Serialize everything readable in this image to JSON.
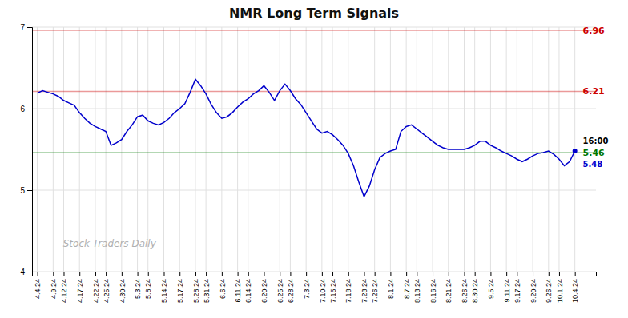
{
  "chart_data": {
    "type": "line",
    "title": "NMR Long Term Signals",
    "categories": [
      "4.4.24",
      null,
      null,
      "4.9.24",
      null,
      "4.12.24",
      null,
      null,
      "4.17.24",
      null,
      null,
      "4.22.24",
      null,
      "4.25.24",
      null,
      null,
      "4.30.24",
      null,
      null,
      "5.3.24",
      null,
      "5.8.24",
      null,
      null,
      "5.14.24",
      null,
      null,
      "5.17.24",
      null,
      null,
      "5.28.24",
      null,
      "5.31.24",
      null,
      null,
      "6.6.24",
      null,
      null,
      "6.11.24",
      null,
      "6.14.24",
      null,
      null,
      "6.20.24",
      null,
      null,
      "6.25.24",
      null,
      "6.28.24",
      null,
      null,
      "7.3.24",
      null,
      null,
      "7.10.24",
      null,
      "7.15.24",
      null,
      null,
      "7.18.24",
      null,
      null,
      "7.23.24",
      null,
      "7.26.24",
      null,
      null,
      "8.1.24",
      null,
      null,
      "8.7.24",
      null,
      "8.13.24",
      null,
      null,
      "8.16.24",
      null,
      null,
      "8.21.24",
      null,
      null,
      "8.26.24",
      null,
      "8.30.24",
      null,
      null,
      "9.5.24",
      null,
      null,
      "9.11.24",
      null,
      "9.17.24",
      null,
      null,
      "9.20.24",
      null,
      null,
      "9.26.24",
      null,
      "10.1.24",
      null,
      null,
      "10.4.24"
    ],
    "values": [
      6.19,
      6.22,
      6.2,
      6.18,
      6.15,
      6.1,
      6.07,
      6.04,
      5.95,
      5.88,
      5.82,
      5.78,
      5.75,
      5.72,
      5.55,
      5.58,
      5.62,
      5.72,
      5.8,
      5.9,
      5.92,
      5.85,
      5.82,
      5.8,
      5.83,
      5.88,
      5.95,
      6.0,
      6.06,
      6.2,
      6.36,
      6.28,
      6.18,
      6.05,
      5.95,
      5.88,
      5.9,
      5.95,
      6.02,
      6.08,
      6.12,
      6.18,
      6.22,
      6.28,
      6.2,
      6.1,
      6.22,
      6.3,
      6.22,
      6.12,
      6.05,
      5.95,
      5.85,
      5.75,
      5.7,
      5.72,
      5.68,
      5.62,
      5.55,
      5.45,
      5.3,
      5.1,
      4.92,
      5.05,
      5.25,
      5.4,
      5.45,
      5.48,
      5.5,
      5.72,
      5.78,
      5.8,
      5.75,
      5.7,
      5.65,
      5.6,
      5.55,
      5.52,
      5.5,
      5.5,
      5.5,
      5.5,
      5.52,
      5.55,
      5.6,
      5.6,
      5.55,
      5.52,
      5.48,
      5.45,
      5.42,
      5.38,
      5.35,
      5.38,
      5.42,
      5.45,
      5.46,
      5.48,
      5.44,
      5.38,
      5.3,
      5.35,
      5.48
    ],
    "color": "#0000cc",
    "ylim": [
      4.0,
      7.0
    ],
    "yticks": [
      4,
      5,
      6,
      7
    ],
    "grid": true,
    "reference_lines": [
      {
        "value": 6.96,
        "label": "6.96",
        "color": "#cc0000"
      },
      {
        "value": 6.21,
        "label": "6.21",
        "color": "#cc0000"
      },
      {
        "value": 5.46,
        "label": "5.46",
        "color": "#007700"
      }
    ],
    "annotations": [
      {
        "text": "16:00",
        "color": "#000000"
      },
      {
        "text": "5.48",
        "color": "#0000cc"
      }
    ],
    "watermark": "Stock Traders Daily"
  }
}
